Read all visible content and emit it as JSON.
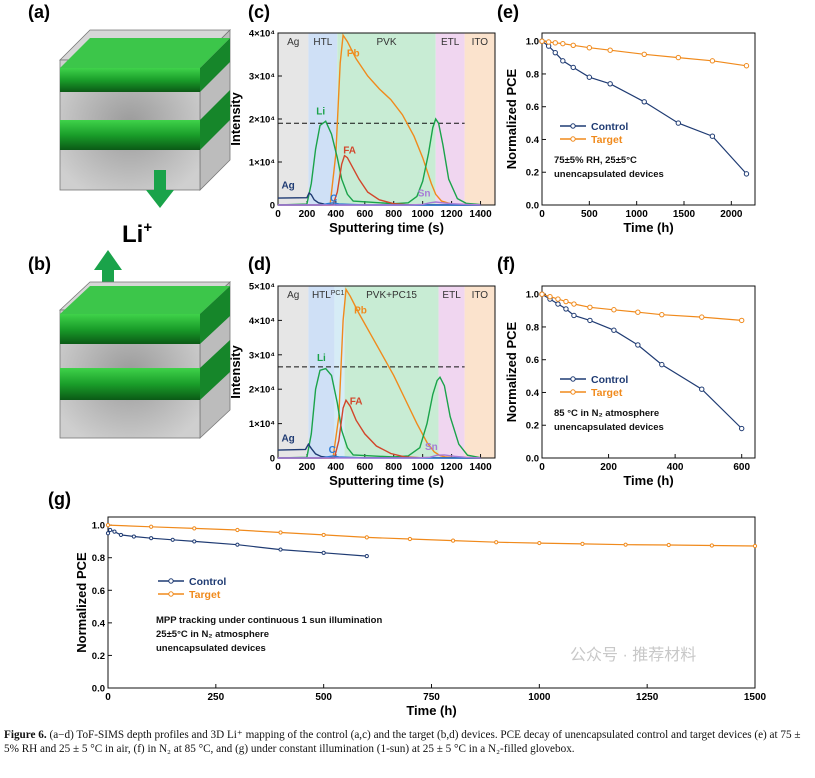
{
  "panels": {
    "a": {
      "label": "(a)"
    },
    "b": {
      "label": "(b)"
    },
    "c": {
      "label": "(c)"
    },
    "d": {
      "label": "(d)"
    },
    "e": {
      "label": "(e)"
    },
    "f": {
      "label": "(f)"
    },
    "g": {
      "label": "(g)"
    }
  },
  "li_label": "Li",
  "li_sup": "+",
  "colors": {
    "control": "#1f3b73",
    "target": "#f08a1c",
    "green": "#1aa34a",
    "red": "#d2462b",
    "purple": "#a77bd6",
    "navy": "#1f3b73"
  },
  "caption": {
    "lead": "Figure 6.",
    "text": "(a−d) ToF-SIMS depth profiles and 3D Li⁺ mapping of the control (a,c) and the target (b,d) devices. PCE decay of unencapsulated control and target devices (e) at 75 ± 5% RH and 25 ± 5 °C in air, (f) in N₂ at 85 °C, and (g) under constant illumination (1-sun) at 25 ± 5 °C in a N₂-filled glovebox."
  },
  "watermark": "公众号 · 推荐材料",
  "chart_data": [
    {
      "id": "c",
      "type": "line",
      "title": "",
      "xlabel": "Sputtering time (s)",
      "ylabel": "Intensity",
      "xlim": [
        0,
        1500
      ],
      "ylim": [
        0,
        40000
      ],
      "xticks": [
        "0",
        "200",
        "400",
        "600",
        "800",
        "1000",
        "1200",
        "1400"
      ],
      "yticks": [
        "0",
        "1×10⁴",
        "2×10⁴",
        "3×10⁴",
        "4×10⁴"
      ],
      "regions": [
        {
          "name": "Ag",
          "from": 0,
          "to": 210
        },
        {
          "name": "HTL",
          "from": 210,
          "to": 410
        },
        {
          "name": "PVK",
          "from": 410,
          "to": 1090
        },
        {
          "name": "ETL",
          "from": 1090,
          "to": 1290
        },
        {
          "name": "ITO",
          "from": 1290,
          "to": 1500
        }
      ],
      "dashed_level": 19000,
      "series": [
        {
          "name": "Pb",
          "x": [
            0,
            360,
            400,
            430,
            450,
            480,
            540,
            620,
            700,
            780,
            860,
            940,
            1000,
            1060,
            1090,
            1130,
            1200,
            1300,
            1400
          ],
          "y": [
            0,
            0,
            12000,
            33000,
            39500,
            38000,
            34000,
            30000,
            27000,
            24500,
            21000,
            16000,
            11000,
            5000,
            2500,
            900,
            200,
            100,
            50
          ]
        },
        {
          "name": "Li",
          "x": [
            0,
            200,
            230,
            260,
            290,
            330,
            370,
            410,
            440,
            480,
            520,
            800,
            900,
            960,
            1000,
            1040,
            1070,
            1090,
            1110,
            1140,
            1180,
            1240,
            1300,
            1400
          ],
          "y": [
            0,
            200,
            5000,
            13000,
            18500,
            19500,
            16500,
            11000,
            6000,
            2500,
            900,
            300,
            500,
            2000,
            5500,
            12000,
            18000,
            20000,
            19000,
            14000,
            6000,
            1500,
            400,
            100
          ]
        },
        {
          "name": "FA",
          "x": [
            0,
            380,
            410,
            440,
            460,
            480,
            520,
            560,
            620,
            700,
            800,
            880,
            1000,
            1400
          ],
          "y": [
            0,
            0,
            3000,
            9500,
            11500,
            11000,
            8500,
            6000,
            3000,
            1200,
            300,
            100,
            50,
            0
          ]
        },
        {
          "name": "Ag",
          "x": [
            0,
            200,
            215,
            230,
            250,
            280,
            320,
            400,
            1400
          ],
          "y": [
            1600,
            1700,
            2800,
            2400,
            1200,
            500,
            200,
            0,
            0
          ]
        },
        {
          "name": "C",
          "x": [
            0,
            300,
            340,
            380,
            420,
            600,
            1400
          ],
          "y": [
            0,
            0,
            300,
            500,
            250,
            0,
            0
          ]
        },
        {
          "name": "Sn",
          "x": [
            0,
            900,
            1000,
            1050,
            1090,
            1140,
            1200,
            1300,
            1400
          ],
          "y": [
            0,
            0,
            150,
            500,
            700,
            500,
            300,
            150,
            50
          ]
        }
      ],
      "annotations": [
        {
          "text": "Pb",
          "x": 520,
          "y": 34500
        },
        {
          "text": "Li",
          "x": 295,
          "y": 21000
        },
        {
          "text": "FA",
          "x": 495,
          "y": 12000
        },
        {
          "text": "Ag",
          "x": 70,
          "y": 3800
        },
        {
          "text": "C",
          "x": 385,
          "y": 800
        },
        {
          "text": "Sn",
          "x": 1010,
          "y": 2000
        }
      ]
    },
    {
      "id": "d",
      "type": "line",
      "title": "",
      "xlabel": "Sputtering time (s)",
      "ylabel": "Intensity",
      "xlim": [
        0,
        1500
      ],
      "ylim": [
        0,
        50000
      ],
      "xticks": [
        "0",
        "200",
        "400",
        "600",
        "800",
        "1000",
        "1200",
        "1400"
      ],
      "yticks": [
        "0",
        "1×10⁴",
        "2×10⁴",
        "3×10⁴",
        "4×10⁴",
        "5×10⁴"
      ],
      "regions": [
        {
          "name": "Ag",
          "from": 0,
          "to": 210
        },
        {
          "name": "HTL",
          "from": 210,
          "to": 390
        },
        {
          "name": "PC12",
          "from": 390,
          "to": 460
        },
        {
          "name": "PVK+PC15",
          "from": 460,
          "to": 1110
        },
        {
          "name": "ETL",
          "from": 1110,
          "to": 1290
        },
        {
          "name": "ITO",
          "from": 1290,
          "to": 1500
        }
      ],
      "dashed_level": 26500,
      "series": [
        {
          "name": "Pb",
          "x": [
            0,
            380,
            420,
            450,
            470,
            500,
            560,
            640,
            720,
            800,
            880,
            960,
            1030,
            1080,
            1120,
            1160,
            1220,
            1300,
            1400
          ],
          "y": [
            0,
            0,
            12000,
            40000,
            49000,
            47000,
            42000,
            36000,
            30000,
            24000,
            17000,
            10000,
            4500,
            1800,
            700,
            300,
            100,
            50,
            0
          ]
        },
        {
          "name": "Li",
          "x": [
            0,
            200,
            230,
            260,
            290,
            330,
            370,
            410,
            440,
            480,
            520,
            800,
            900,
            980,
            1030,
            1070,
            1100,
            1120,
            1150,
            1190,
            1250,
            1310,
            1400
          ],
          "y": [
            0,
            200,
            7000,
            20000,
            25500,
            26000,
            24000,
            16000,
            8000,
            3000,
            900,
            300,
            600,
            3000,
            10000,
            18500,
            22500,
            23500,
            21000,
            12000,
            4000,
            800,
            100
          ]
        },
        {
          "name": "FA",
          "x": [
            0,
            390,
            420,
            450,
            470,
            500,
            540,
            600,
            680,
            780,
            880,
            1000,
            1400
          ],
          "y": [
            0,
            0,
            5000,
            14500,
            16800,
            15000,
            11000,
            7000,
            3500,
            1300,
            300,
            50,
            0
          ]
        },
        {
          "name": "Ag",
          "x": [
            0,
            190,
            210,
            230,
            260,
            300,
            380,
            1400
          ],
          "y": [
            2300,
            2500,
            4000,
            2800,
            1200,
            400,
            100,
            0
          ]
        },
        {
          "name": "C",
          "x": [
            0,
            300,
            340,
            380,
            420,
            600,
            1400
          ],
          "y": [
            0,
            0,
            300,
            600,
            300,
            0,
            0
          ]
        },
        {
          "name": "Sn",
          "x": [
            0,
            950,
            1050,
            1100,
            1150,
            1220,
            1300,
            1400
          ],
          "y": [
            0,
            0,
            200,
            800,
            900,
            500,
            200,
            0
          ]
        }
      ],
      "annotations": [
        {
          "text": "Pb",
          "x": 570,
          "y": 42000
        },
        {
          "text": "Li",
          "x": 300,
          "y": 28200
        },
        {
          "text": "FA",
          "x": 540,
          "y": 15500
        },
        {
          "text": "Ag",
          "x": 70,
          "y": 4800
        },
        {
          "text": "C",
          "x": 375,
          "y": 1500
        },
        {
          "text": "Sn",
          "x": 1060,
          "y": 2300
        }
      ]
    },
    {
      "id": "e",
      "type": "line",
      "xlabel": "Time (h)",
      "ylabel": "Normalized PCE",
      "xlim": [
        0,
        2250
      ],
      "ylim": [
        0,
        1.05
      ],
      "xticks": [
        "0",
        "500",
        "1000",
        "1500",
        "2000"
      ],
      "yticks": [
        "0.0",
        "0.2",
        "0.4",
        "0.6",
        "0.8",
        "1.0"
      ],
      "series": [
        {
          "name": "Control",
          "x": [
            0,
            70,
            140,
            220,
            330,
            500,
            720,
            1080,
            1440,
            1800,
            2160
          ],
          "y": [
            1.0,
            0.97,
            0.93,
            0.88,
            0.84,
            0.78,
            0.74,
            0.63,
            0.5,
            0.42,
            0.19
          ]
        },
        {
          "name": "Target",
          "x": [
            0,
            70,
            140,
            220,
            330,
            500,
            720,
            1080,
            1440,
            1800,
            2160
          ],
          "y": [
            1.0,
            0.995,
            0.99,
            0.985,
            0.975,
            0.96,
            0.945,
            0.92,
            0.9,
            0.88,
            0.85
          ]
        }
      ],
      "legend": [
        "Control",
        "Target"
      ],
      "condition_lines": [
        "75±5% RH, 25±5°C",
        "unencapsulated devices"
      ]
    },
    {
      "id": "f",
      "type": "line",
      "xlabel": "Time (h)",
      "ylabel": "Normalized PCE",
      "xlim": [
        0,
        640
      ],
      "ylim": [
        0,
        1.05
      ],
      "xticks": [
        "0",
        "200",
        "400",
        "600"
      ],
      "yticks": [
        "0.0",
        "0.2",
        "0.4",
        "0.6",
        "0.8",
        "1.0"
      ],
      "series": [
        {
          "name": "Control",
          "x": [
            0,
            24,
            48,
            72,
            96,
            144,
            216,
            288,
            360,
            480,
            600
          ],
          "y": [
            1.0,
            0.97,
            0.94,
            0.91,
            0.87,
            0.84,
            0.78,
            0.69,
            0.57,
            0.42,
            0.18
          ]
        },
        {
          "name": "Target",
          "x": [
            0,
            24,
            48,
            72,
            96,
            144,
            216,
            288,
            360,
            480,
            600
          ],
          "y": [
            1.0,
            0.985,
            0.97,
            0.955,
            0.94,
            0.92,
            0.905,
            0.89,
            0.875,
            0.86,
            0.84
          ]
        }
      ],
      "legend": [
        "Control",
        "Target"
      ],
      "condition_lines": [
        "85 °C in N₂ atmosphere",
        "unencapsulated devices"
      ]
    },
    {
      "id": "g",
      "type": "line",
      "xlabel": "Time (h)",
      "ylabel": "Normalized PCE",
      "xlim": [
        0,
        1500
      ],
      "ylim": [
        0,
        1.05
      ],
      "xticks": [
        "0",
        "250",
        "500",
        "750",
        "1000",
        "1250",
        "1500"
      ],
      "yticks": [
        "0.0",
        "0.2",
        "0.4",
        "0.6",
        "0.8",
        "1.0"
      ],
      "series": [
        {
          "name": "Control",
          "x": [
            0,
            5,
            15,
            30,
            60,
            100,
            150,
            200,
            300,
            400,
            500,
            600
          ],
          "y": [
            0.95,
            0.97,
            0.96,
            0.94,
            0.93,
            0.92,
            0.91,
            0.9,
            0.88,
            0.85,
            0.83,
            0.81
          ]
        },
        {
          "name": "Target",
          "x": [
            0,
            100,
            200,
            300,
            400,
            500,
            600,
            700,
            800,
            900,
            1000,
            1100,
            1200,
            1300,
            1400,
            1500
          ],
          "y": [
            1.0,
            0.99,
            0.98,
            0.97,
            0.955,
            0.94,
            0.925,
            0.915,
            0.905,
            0.895,
            0.89,
            0.885,
            0.88,
            0.878,
            0.875,
            0.872
          ]
        }
      ],
      "legend": [
        "Control",
        "Target"
      ],
      "condition_lines": [
        "MPP tracking under continuous 1 sun illumination",
        "25±5°C in N₂ atmosphere",
        "unencapsulated devices"
      ]
    }
  ]
}
